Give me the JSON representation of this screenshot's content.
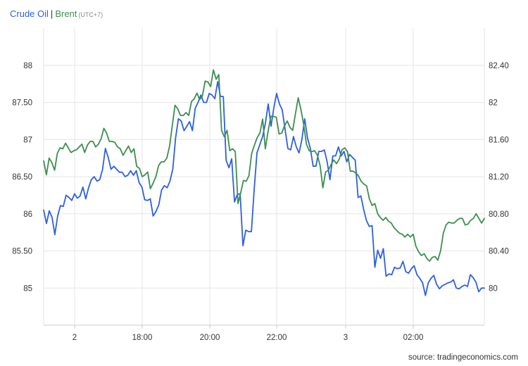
{
  "title": {
    "series1": "Crude Oil",
    "separator": "|",
    "series2": "Brent",
    "timezone": "(UTC+7)"
  },
  "source": "source: tradingeconomics.com",
  "chart_data": {
    "type": "line",
    "x_tick_labels": [
      "2",
      "18:00",
      "20:00",
      "22:00",
      "3",
      "02:00"
    ],
    "y_left": {
      "ylim": [
        84.5,
        88.5
      ],
      "ticks": [
        85,
        85.5,
        86,
        86.5,
        87,
        87.5,
        88
      ],
      "tick_labels": [
        "85",
        "85.50",
        "86",
        "86.50",
        "87",
        "87.50",
        "88"
      ]
    },
    "y_right": {
      "ylim": [
        79.6,
        82.8
      ],
      "ticks": [
        80,
        80.4,
        80.8,
        81.2,
        81.6,
        82,
        82.4
      ],
      "tick_labels": [
        "80",
        "80.40",
        "80.80",
        "81.20",
        "81.60",
        "82",
        "82.40"
      ]
    },
    "grid": true,
    "legend": "none",
    "series": [
      {
        "name": "Crude Oil",
        "axis": "left",
        "color": "#2d5fe0",
        "values": [
          86.05,
          85.87,
          86.04,
          85.95,
          85.72,
          85.97,
          86.11,
          86.1,
          86.25,
          86.22,
          86.18,
          86.27,
          86.21,
          86.24,
          86.36,
          86.2,
          86.35,
          86.46,
          86.5,
          86.44,
          86.46,
          86.6,
          86.88,
          86.76,
          86.6,
          86.64,
          86.6,
          86.56,
          86.56,
          86.5,
          86.52,
          86.58,
          86.52,
          86.58,
          86.42,
          86.36,
          86.19,
          86.18,
          86.2,
          85.97,
          86.03,
          86.12,
          86.32,
          86.38,
          86.35,
          86.44,
          86.6,
          87.02,
          87.28,
          87.25,
          87.12,
          87.18,
          87.24,
          87.12,
          87.42,
          87.5,
          87.6,
          87.5,
          87.5,
          87.62,
          87.6,
          87.55,
          87.78,
          87.58,
          87.58,
          86.72,
          86.62,
          86.74,
          86.16,
          86.26,
          86.27,
          85.57,
          85.78,
          85.76,
          85.76,
          86.32,
          86.82,
          86.93,
          87.04,
          87.22,
          87.48,
          87.18,
          87.43,
          87.62,
          87.48,
          87.4,
          87.14,
          86.88,
          86.86,
          87.04,
          86.9,
          86.82,
          87.0,
          87.28,
          87.02,
          86.88,
          86.64,
          86.64,
          86.84,
          86.84,
          86.86,
          86.7,
          86.46,
          86.78,
          86.78,
          86.9,
          86.78,
          86.84,
          86.7,
          86.8,
          86.76,
          86.72,
          86.22,
          86.24,
          86.06,
          85.91,
          85.83,
          85.84,
          85.28,
          85.51,
          85.4,
          85.53,
          85.16,
          85.19,
          85.18,
          85.28,
          85.26,
          85.27,
          85.36,
          85.22,
          85.2,
          85.26,
          85.3,
          85.18,
          85.13,
          85.07,
          84.9,
          85.07,
          85.13,
          85.17,
          85.05,
          84.99,
          85.03,
          85.05,
          85.07,
          85.08,
          85.11,
          85.0,
          84.99,
          85.02,
          85.04,
          85.02,
          85.18,
          85.14,
          85.08,
          84.95,
          85.0,
          85.0
        ]
      },
      {
        "name": "Brent",
        "axis": "right",
        "color": "#3b8f4e",
        "values": [
          81.37,
          81.22,
          81.4,
          81.35,
          81.27,
          81.45,
          81.51,
          81.5,
          81.56,
          81.51,
          81.46,
          81.48,
          81.49,
          81.52,
          81.55,
          81.46,
          81.54,
          81.58,
          81.58,
          81.52,
          81.55,
          81.61,
          81.72,
          81.67,
          81.58,
          81.58,
          81.57,
          81.52,
          81.5,
          81.43,
          81.48,
          81.53,
          81.46,
          81.5,
          81.31,
          81.29,
          81.2,
          81.22,
          81.25,
          81.07,
          81.13,
          81.2,
          81.32,
          81.36,
          81.36,
          81.4,
          81.53,
          81.75,
          81.97,
          81.93,
          81.86,
          81.86,
          81.89,
          81.86,
          82.01,
          82.04,
          82.1,
          82.03,
          82.07,
          82.23,
          82.22,
          82.17,
          82.35,
          82.25,
          82.3,
          81.7,
          81.63,
          81.7,
          81.48,
          81.5,
          81.47,
          80.91,
          81.03,
          81.16,
          81.15,
          81.21,
          81.45,
          81.54,
          81.62,
          81.67,
          81.82,
          81.5,
          81.69,
          81.85,
          81.85,
          81.84,
          81.66,
          81.67,
          81.75,
          81.8,
          81.73,
          81.7,
          81.88,
          82.05,
          81.92,
          81.76,
          81.55,
          81.48,
          81.47,
          81.48,
          81.43,
          81.32,
          81.08,
          81.25,
          81.27,
          81.33,
          81.38,
          81.34,
          81.39,
          81.49,
          81.51,
          81.47,
          81.26,
          81.26,
          81.24,
          81.21,
          81.15,
          81.12,
          81.1,
          80.96,
          80.89,
          80.91,
          80.8,
          80.76,
          80.73,
          80.76,
          80.72,
          80.7,
          80.65,
          80.62,
          80.59,
          80.58,
          80.55,
          80.58,
          80.55,
          80.58,
          80.45,
          80.39,
          80.35,
          80.37,
          80.32,
          80.29,
          80.33,
          80.34,
          80.3,
          80.4,
          80.59,
          80.68,
          80.71,
          80.7,
          80.7,
          80.73,
          80.75,
          80.75,
          80.68,
          80.69,
          80.73,
          80.75,
          80.8,
          80.75,
          80.7,
          80.75
        ]
      }
    ]
  }
}
